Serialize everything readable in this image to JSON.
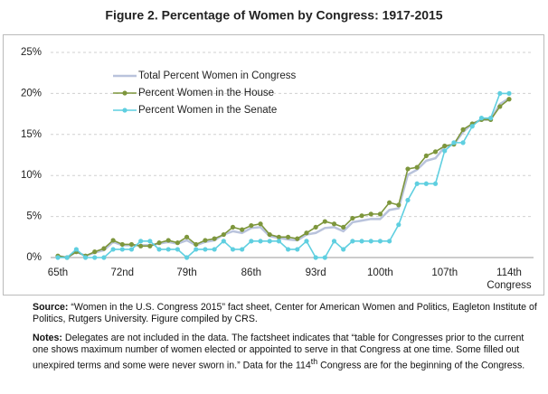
{
  "chart_data": {
    "type": "line",
    "title": "Figure 2. Percentage of Women by Congress: 1917-2015",
    "x_label": "Congress",
    "categories": [
      "65th",
      null,
      null,
      null,
      null,
      null,
      null,
      "72nd",
      null,
      null,
      null,
      null,
      null,
      null,
      "79th",
      null,
      null,
      null,
      null,
      null,
      null,
      "86th",
      null,
      null,
      null,
      null,
      null,
      null,
      "93rd",
      null,
      null,
      null,
      null,
      null,
      null,
      "100th",
      null,
      null,
      null,
      null,
      null,
      null,
      "107th",
      null,
      null,
      null,
      null,
      null,
      null,
      "114th"
    ],
    "series": [
      {
        "name": "Total Percent Women in Congress",
        "color": "#b9c3dc",
        "markers": false,
        "values": [
          0.2,
          0,
          0.7,
          0.2,
          0.6,
          0.9,
          1.9,
          1.5,
          1.5,
          1.5,
          1.5,
          1.7,
          1.9,
          1.7,
          2.1,
          1.5,
          1.9,
          2.1,
          2.8,
          3.2,
          3.0,
          3.6,
          3.7,
          2.6,
          2.4,
          2.2,
          2.1,
          2.8,
          3.0,
          3.6,
          3.7,
          3.2,
          4.3,
          4.5,
          4.7,
          4.7,
          5.8,
          6.0,
          10.1,
          10.7,
          11.8,
          12.1,
          13.5,
          13.8,
          15.3,
          16.3,
          16.8,
          16.8,
          18.7,
          19.4
        ]
      },
      {
        "name": "Percent Women in the House",
        "color": "#7d963c",
        "markers": true,
        "values": [
          0.2,
          0,
          0.7,
          0.2,
          0.7,
          1.1,
          2.1,
          1.6,
          1.6,
          1.4,
          1.4,
          1.8,
          2.1,
          1.8,
          2.5,
          1.6,
          2.1,
          2.3,
          2.8,
          3.7,
          3.4,
          3.9,
          4.1,
          2.8,
          2.5,
          2.5,
          2.3,
          3.0,
          3.7,
          4.4,
          4.1,
          3.7,
          4.8,
          5.1,
          5.3,
          5.3,
          6.7,
          6.4,
          10.8,
          11.0,
          12.4,
          12.9,
          13.6,
          13.8,
          15.6,
          16.3,
          16.8,
          16.8,
          18.4,
          19.3
        ]
      },
      {
        "name": "Percent Women in the Senate",
        "color": "#5fcfe0",
        "markers": true,
        "values": [
          0,
          0,
          1,
          0,
          0,
          0,
          1,
          1,
          1,
          2,
          2,
          1,
          1,
          1,
          0,
          1,
          1,
          1,
          2,
          1,
          1,
          2,
          2,
          2,
          2,
          1,
          1,
          2,
          0,
          0,
          2,
          1,
          2,
          2,
          2,
          2,
          2,
          4,
          7,
          9,
          9,
          9,
          13,
          14,
          14,
          16,
          17,
          17,
          20,
          20
        ]
      }
    ],
    "ylim": [
      0,
      25
    ],
    "yticks": [
      {
        "value": 0,
        "label": "0%"
      },
      {
        "value": 5,
        "label": "5%"
      },
      {
        "value": 10,
        "label": "10%"
      },
      {
        "value": 15,
        "label": "15%"
      },
      {
        "value": 20,
        "label": "20%"
      },
      {
        "value": 25,
        "label": "25%"
      }
    ],
    "grid": true,
    "legend": "upper left"
  },
  "footer": {
    "source_label": "Source:",
    "source_text": "“Women in the U.S. Congress 2015” fact sheet, Center for American Women and Politics, Eagleton Institute of Politics, Rutgers University. Figure compiled by CRS.",
    "notes_label": "Notes:",
    "notes_text": [
      "Delegates are not included in the data. The factsheet indicates that “table for Congresses prior to the current one shows maximum number of women elected or appointed to serve in that Congress at one time. Some filled out unexpired terms and some were never sworn in.” Data for the 114",
      "th",
      " Congress are for the beginning of the Congress."
    ]
  }
}
